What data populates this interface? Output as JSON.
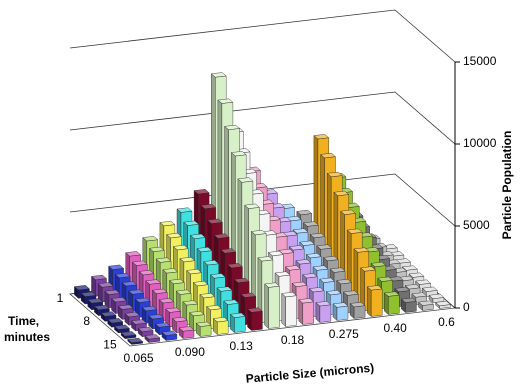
{
  "chart_data": {
    "type": "bar3d",
    "x_label": "Particle Size  (microns)",
    "y_label": "Particle Population",
    "z_label": [
      "Time,",
      "minutes"
    ],
    "categories": [
      "0.065",
      null,
      null,
      "0.090",
      null,
      null,
      "0.13",
      null,
      null,
      "0.18",
      null,
      null,
      "0.275",
      null,
      null,
      "0.40",
      null,
      null,
      "0.6"
    ],
    "rows": [
      "1",
      null,
      null,
      null,
      "8",
      null,
      null,
      null,
      "15"
    ],
    "colors": [
      "#1a1a6e",
      "#7a3fa0",
      "#2b3fd6",
      "#e060c0",
      "#b8e070",
      "#f0f060",
      "#40e0e0",
      "#7a0a2a",
      "#d8f0c8",
      "#f4f4f4",
      "#f0a0c8",
      "#c8a0f0",
      "#a0d0ff",
      "#a0a0a0",
      "#f0b020",
      "#90c030",
      "#707070",
      "#c0c0c0",
      "#e0e0e0"
    ],
    "values": [
      [
        500,
        1000,
        1500,
        2200,
        3000,
        3800,
        4500,
        5500,
        12500,
        9000,
        6500,
        5000,
        4000,
        3500,
        8000,
        5500,
        3000,
        1500,
        800
      ],
      [
        450,
        900,
        1350,
        1980,
        2700,
        3420,
        4050,
        4950,
        11250,
        8100,
        5850,
        4500,
        3600,
        3150,
        7200,
        4950,
        2700,
        1350,
        720
      ],
      [
        400,
        800,
        1200,
        1760,
        2400,
        3040,
        3600,
        4400,
        10000,
        7200,
        5200,
        4000,
        3200,
        2800,
        6400,
        4400,
        2400,
        1200,
        640
      ],
      [
        350,
        700,
        1050,
        1540,
        2100,
        2660,
        3150,
        3850,
        8750,
        6300,
        4550,
        3500,
        2800,
        2450,
        5600,
        3850,
        2100,
        1050,
        560
      ],
      [
        300,
        600,
        900,
        1320,
        1800,
        2280,
        2700,
        3300,
        7500,
        5400,
        3900,
        3000,
        2400,
        2100,
        4800,
        3300,
        1800,
        900,
        480
      ],
      [
        250,
        500,
        750,
        1100,
        1500,
        1900,
        2250,
        2750,
        6250,
        4500,
        3250,
        2500,
        2000,
        1750,
        4000,
        2750,
        1500,
        750,
        400
      ],
      [
        200,
        400,
        600,
        880,
        1200,
        1520,
        1800,
        2200,
        5000,
        3600,
        2600,
        2000,
        1600,
        1400,
        3200,
        2200,
        1200,
        600,
        320
      ],
      [
        150,
        300,
        450,
        660,
        900,
        1140,
        1350,
        1650,
        3750,
        2700,
        1950,
        1500,
        1200,
        1050,
        2400,
        1650,
        900,
        450,
        240
      ],
      [
        100,
        200,
        300,
        440,
        600,
        760,
        900,
        1100,
        2500,
        1800,
        1300,
        1000,
        800,
        700,
        1600,
        1100,
        600,
        300,
        160
      ]
    ],
    "ylim": [
      0,
      15000
    ],
    "yticks": [
      0,
      5000,
      10000,
      15000
    ],
    "grid": true
  }
}
